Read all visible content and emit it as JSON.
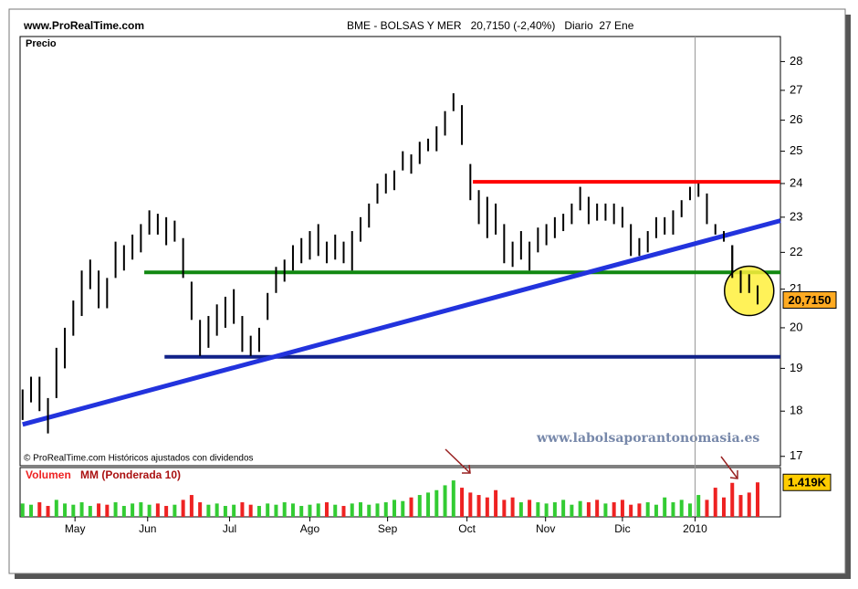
{
  "chart_data": {
    "type": "stock",
    "site": "www.ProRealTime.com",
    "title": "BME - BOLSAS Y MER   20,7150 (-2,40%)   Diario  27 Ene",
    "copyright": "© ProRealTime.com Históricos ajustados con dividendos",
    "watermark": "www.labolsaporantonomasia.es",
    "price": {
      "name": "Precio",
      "color": "#000000",
      "high": [
        18.5,
        18.8,
        18.8,
        18.3,
        19.5,
        20.0,
        20.7,
        21.5,
        21.8,
        21.5,
        21.3,
        22.3,
        22.2,
        22.5,
        22.8,
        23.2,
        23.1,
        23.0,
        22.9,
        22.4,
        21.2,
        20.2,
        20.3,
        20.6,
        20.8,
        21.0,
        20.3,
        19.8,
        20.0,
        20.9,
        21.6,
        21.8,
        22.2,
        22.4,
        22.6,
        22.8,
        22.3,
        22.5,
        22.3,
        22.6,
        23.0,
        23.4,
        24.0,
        24.3,
        24.4,
        25.0,
        24.9,
        25.3,
        25.4,
        25.8,
        26.3,
        26.9,
        26.5,
        24.6,
        23.8,
        23.6,
        23.4,
        22.8,
        22.3,
        22.6,
        22.3,
        22.7,
        22.8,
        23.0,
        23.1,
        23.4,
        23.9,
        23.6,
        23.4,
        23.4,
        23.4,
        23.3,
        22.8,
        22.4,
        22.6,
        23.0,
        23.0,
        23.2,
        23.5,
        23.9,
        24.0,
        23.7,
        22.8,
        22.6,
        22.2,
        21.5,
        21.4,
        21.1
      ],
      "low": [
        17.8,
        18.2,
        18.0,
        17.5,
        18.3,
        19.0,
        19.8,
        20.3,
        21.0,
        20.5,
        20.5,
        21.3,
        21.5,
        21.8,
        22.0,
        22.5,
        22.5,
        22.2,
        22.3,
        21.3,
        20.2,
        19.3,
        19.5,
        19.8,
        20.0,
        20.1,
        19.4,
        19.3,
        19.4,
        20.2,
        20.9,
        21.2,
        21.5,
        21.7,
        21.8,
        21.9,
        21.7,
        21.8,
        21.7,
        21.5,
        22.3,
        22.7,
        23.4,
        23.7,
        23.8,
        24.4,
        24.3,
        24.6,
        25.0,
        25.0,
        25.5,
        26.3,
        25.2,
        23.5,
        22.8,
        22.4,
        22.5,
        21.7,
        21.6,
        21.8,
        21.5,
        22.0,
        22.2,
        22.4,
        22.6,
        22.8,
        23.2,
        22.8,
        22.9,
        22.9,
        22.8,
        22.7,
        21.9,
        21.9,
        22.0,
        22.4,
        22.5,
        22.5,
        23.0,
        23.5,
        23.6,
        22.8,
        22.5,
        22.3,
        21.3,
        20.9,
        20.9,
        20.6
      ]
    },
    "last": {
      "value": 20.715,
      "label": "20,7150"
    },
    "levels": [
      {
        "value": 24.05,
        "from": 53.3,
        "color": "#ff0000"
      },
      {
        "value": 21.45,
        "from": 14.4,
        "color": "#118811"
      },
      {
        "value": 19.28,
        "from": 16.8,
        "color": "#112288"
      }
    ],
    "trendline": {
      "from": [
        0,
        17.7
      ],
      "to": [
        89.7,
        22.9
      ],
      "color": "#2233dd"
    },
    "log_scale": true,
    "xlim": [
      -0.3,
      89.7
    ],
    "xticks": [
      {
        "value": 6.2,
        "label": "May"
      },
      {
        "value": 14.8,
        "label": "Jun"
      },
      {
        "value": 24.5,
        "label": "Jul"
      },
      {
        "value": 34.0,
        "label": "Ago"
      },
      {
        "value": 43.2,
        "label": "Sep"
      },
      {
        "value": 52.6,
        "label": "Oct"
      },
      {
        "value": 61.9,
        "label": "Nov"
      },
      {
        "value": 71.0,
        "label": "Dic"
      },
      {
        "value": 79.6,
        "label": "2010"
      }
    ],
    "ylim": [
      16.8,
      28.9
    ],
    "yticks": [
      17,
      18,
      19,
      20,
      21,
      22,
      23,
      24,
      25,
      26,
      27,
      28
    ],
    "volume": {
      "name": "Volumen",
      "subtitle": "MM (Ponderada 10)",
      "up_color": "#33cc33",
      "down_color": "#ee2222",
      "values": [
        0.55,
        0.5,
        0.6,
        0.45,
        0.7,
        0.55,
        0.5,
        0.6,
        0.45,
        0.55,
        0.5,
        0.6,
        0.45,
        0.55,
        0.6,
        0.5,
        0.55,
        0.45,
        0.5,
        0.7,
        0.9,
        0.6,
        0.5,
        0.55,
        0.45,
        0.5,
        0.6,
        0.5,
        0.45,
        0.55,
        0.5,
        0.6,
        0.55,
        0.45,
        0.5,
        0.55,
        0.6,
        0.5,
        0.45,
        0.55,
        0.6,
        0.5,
        0.55,
        0.6,
        0.7,
        0.65,
        0.8,
        0.9,
        1.0,
        1.1,
        1.3,
        1.5,
        1.2,
        1.0,
        0.9,
        0.8,
        1.1,
        0.7,
        0.8,
        0.6,
        0.7,
        0.6,
        0.55,
        0.6,
        0.7,
        0.5,
        0.65,
        0.6,
        0.7,
        0.55,
        0.6,
        0.7,
        0.5,
        0.55,
        0.6,
        0.5,
        0.8,
        0.6,
        0.7,
        0.55,
        0.9,
        0.7,
        1.2,
        0.8,
        1.4,
        0.9,
        1.0,
        1.42
      ],
      "last": {
        "value": 1.419,
        "label": "1.419K"
      },
      "ylim": [
        0,
        2.03
      ]
    }
  }
}
